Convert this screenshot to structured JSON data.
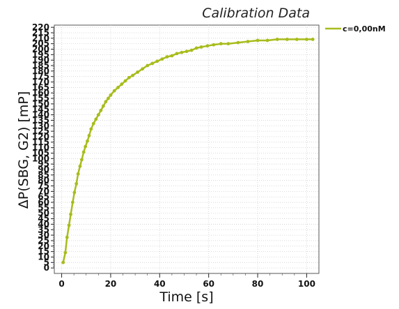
{
  "chart_data": {
    "type": "line",
    "title": "Calibration Data",
    "xlabel": "Time [s]",
    "ylabel": "ΔP(SBG, G2) [mP]",
    "xlim": [
      -3,
      105
    ],
    "ylim": [
      -5,
      222
    ],
    "xticks": [
      0,
      20,
      40,
      60,
      80,
      100
    ],
    "yticks": [
      0,
      5,
      10,
      15,
      20,
      25,
      30,
      35,
      40,
      45,
      50,
      55,
      60,
      65,
      70,
      75,
      80,
      85,
      90,
      95,
      100,
      105,
      110,
      115,
      120,
      125,
      130,
      135,
      140,
      145,
      150,
      155,
      160,
      165,
      170,
      175,
      180,
      185,
      190,
      195,
      200,
      205,
      210,
      215,
      220
    ],
    "grid": true,
    "legend_position": "top-right",
    "series": [
      {
        "name": "c=0,00nM",
        "color": "#a8bc1c",
        "x": [
          0.6,
          1.5,
          2.2,
          3.0,
          3.7,
          4.5,
          5.2,
          6.0,
          6.7,
          7.5,
          8.2,
          9.0,
          9.7,
          10.5,
          11.2,
          12.0,
          13.0,
          14.0,
          15.0,
          16.0,
          17.0,
          18.0,
          19.0,
          20.0,
          21.5,
          23.0,
          24.5,
          26.0,
          27.5,
          29.0,
          31.0,
          33.0,
          35.0,
          37.0,
          39.0,
          41.0,
          43.0,
          45.0,
          47.0,
          49.0,
          51.0,
          53.0,
          55.0,
          57.0,
          59.5,
          62.0,
          65.0,
          68.0,
          72.0,
          76.0,
          80.0,
          84.0,
          88.0,
          92.0,
          96.0,
          100.0,
          102.5
        ],
        "y": [
          5,
          14,
          28,
          39,
          49,
          60,
          69,
          77,
          86,
          93,
          99,
          106,
          111,
          116,
          121,
          127,
          132,
          136,
          140,
          144,
          148,
          152,
          155,
          158,
          162,
          165,
          168,
          171,
          174,
          176,
          179,
          182,
          185,
          187,
          189,
          191,
          193,
          194,
          196,
          197,
          198,
          199,
          201,
          202,
          203,
          204,
          205,
          205,
          206,
          207,
          208,
          208,
          209,
          209,
          209,
          209,
          209
        ]
      }
    ]
  }
}
